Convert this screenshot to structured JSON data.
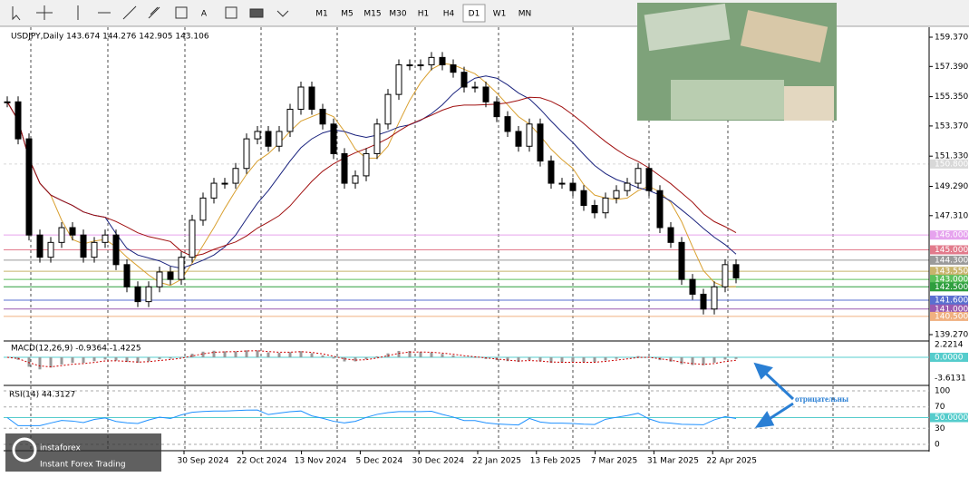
{
  "toolbar": {
    "timeframes": [
      "M1",
      "M5",
      "M15",
      "M30",
      "H1",
      "H4",
      "D1",
      "W1",
      "MN"
    ],
    "active": "D1"
  },
  "chart": {
    "header": "USDJPY,Daily  143.674 144.276 142.905 143.106",
    "closes": [
      155,
      152.5,
      146,
      144.5,
      145.5,
      146.5,
      146,
      144.5,
      145.5,
      146,
      144,
      142.5,
      141.5,
      142.5,
      143.5,
      143,
      144.5,
      147,
      148.5,
      149.5,
      149.5,
      150.5,
      152.5,
      153,
      152,
      153,
      154.5,
      156,
      154.5,
      153.5,
      151.5,
      149.5,
      150,
      151.5,
      153.5,
      155.5,
      157.5,
      157.5,
      157.5,
      158,
      157.5,
      157,
      156,
      156,
      155,
      154,
      153,
      152,
      153.5,
      151,
      149.5,
      149.5,
      149,
      148,
      147.5,
      148.5,
      149,
      149.5,
      150.5,
      149,
      146.5,
      145.5,
      143,
      142,
      141,
      142.5,
      144,
      143.106
    ],
    "price_ticks": [
      {
        "value": 159.37,
        "label": "159.370"
      },
      {
        "value": 157.39,
        "label": "157.390"
      },
      {
        "value": 155.35,
        "label": "155.350"
      },
      {
        "value": 153.37,
        "label": "153.370"
      },
      {
        "value": 151.33,
        "label": "151.330"
      },
      {
        "value": 149.29,
        "label": "149.290"
      },
      {
        "value": 147.31,
        "label": "147.310"
      },
      {
        "value": 139.27,
        "label": "139.270"
      }
    ],
    "levels": [
      {
        "value": 150.8,
        "label": "150.800",
        "color": "#d8d8d8"
      },
      {
        "value": 146,
        "label": "146.000",
        "color": "#e6a3ee"
      },
      {
        "value": 145,
        "label": "145.000",
        "color": "#e27b8c"
      },
      {
        "value": 144.3,
        "label": "144.300",
        "color": "#9a9a9a"
      },
      {
        "value": 143.55,
        "label": "143.550",
        "color": "#c8b46c"
      },
      {
        "value": 143,
        "label": "143.000",
        "color": "#5cc05c"
      },
      {
        "value": 142.5,
        "label": "142.500",
        "color": "#2e9e3e"
      },
      {
        "value": 141.6,
        "label": "141.600",
        "color": "#5a6fd0"
      },
      {
        "value": 141,
        "label": "141.000",
        "color": "#9a5ab0"
      },
      {
        "value": 140.5,
        "label": "140.500",
        "color": "#f0b080"
      }
    ],
    "dates": [
      "30 Sep 2024",
      "22 Oct 2024",
      "13 Nov 2024",
      "5 Dec 2024",
      "30 Dec 2024",
      "22 Jan 2025",
      "13 Feb 2025",
      "7 Mar 2025",
      "31 Mar 2025",
      "22 Apr 2025"
    ],
    "macd": {
      "header": "MACD(12,26,9) -0.9364 -1.4225",
      "ticks": [
        {
          "value": 2.2214,
          "label": "2.2214"
        },
        {
          "value": 0,
          "label": "0.0000"
        },
        {
          "value": -3.6131,
          "label": "-3.6131"
        }
      ]
    },
    "rsi": {
      "header": "RSI(14) 44.3127",
      "ticks": [
        100,
        70,
        {
          "value": 50,
          "label": "50.0000"
        },
        30,
        0
      ]
    }
  },
  "annotation": "отрицательны",
  "watermark": {
    "brand": "instaforex",
    "tagline": "Instant Forex Trading"
  }
}
